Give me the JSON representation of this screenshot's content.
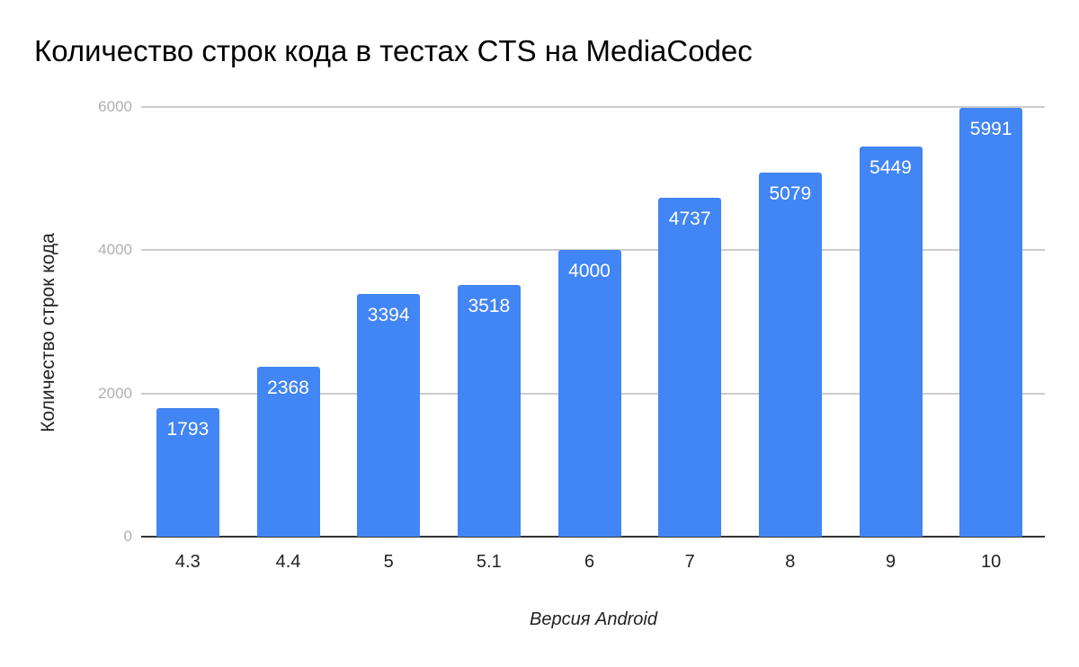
{
  "chart_data": {
    "type": "bar",
    "title": "Количество строк кода в тестах CTS на MediaCodec",
    "xlabel": "Версия Android",
    "ylabel": "Количество строк кода",
    "categories": [
      "4.3",
      "4.4",
      "5",
      "5.1",
      "6",
      "7",
      "8",
      "9",
      "10"
    ],
    "values": [
      1793,
      2368,
      3394,
      3518,
      4000,
      4737,
      5079,
      5449,
      5991
    ],
    "ylim": [
      0,
      6000
    ],
    "yticks": [
      "0",
      "2000",
      "4000",
      "6000"
    ],
    "grid": true,
    "legend": "none",
    "bar_color": "#4285f4",
    "data_labels": [
      "1793",
      "2368",
      "3394",
      "3518",
      "4000",
      "4737",
      "5079",
      "5449",
      "5991"
    ]
  }
}
